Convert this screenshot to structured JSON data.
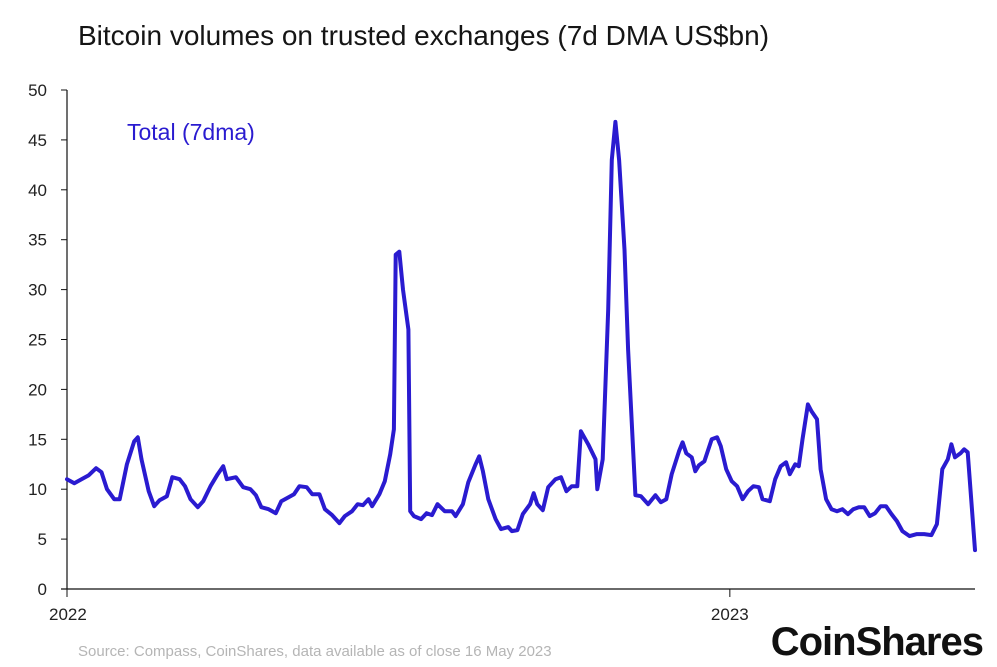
{
  "chart_data": {
    "type": "line",
    "title": "Bitcoin volumes on trusted exchanges (7d DMA US$bn)",
    "annotation": "Total (7dma)",
    "ylim": [
      0,
      50
    ],
    "y_ticks": [
      "0",
      "5",
      "10",
      "15",
      "20",
      "25",
      "30",
      "35",
      "40",
      "45",
      "50"
    ],
    "x_ticks": [
      "2022",
      "2023"
    ],
    "x_range": [
      "2022-01-01",
      "2023-05-16"
    ],
    "grid": false,
    "series": [
      {
        "name": "Total (7dma)",
        "color": "#2a1bd0",
        "points": [
          [
            "2022-01-01",
            11.0
          ],
          [
            "2022-01-05",
            10.6
          ],
          [
            "2022-01-09",
            11.0
          ],
          [
            "2022-01-13",
            11.4
          ],
          [
            "2022-01-17",
            12.1
          ],
          [
            "2022-01-20",
            11.7
          ],
          [
            "2022-01-23",
            10.0
          ],
          [
            "2022-01-27",
            9.0
          ],
          [
            "2022-01-30",
            9.0
          ],
          [
            "2022-02-03",
            12.5
          ],
          [
            "2022-02-07",
            14.8
          ],
          [
            "2022-02-09",
            15.2
          ],
          [
            "2022-02-11",
            13.0
          ],
          [
            "2022-02-15",
            9.8
          ],
          [
            "2022-02-18",
            8.3
          ],
          [
            "2022-02-21",
            8.9
          ],
          [
            "2022-02-25",
            9.3
          ],
          [
            "2022-02-28",
            11.2
          ],
          [
            "2022-03-04",
            11.0
          ],
          [
            "2022-03-07",
            10.3
          ],
          [
            "2022-03-10",
            9.0
          ],
          [
            "2022-03-14",
            8.2
          ],
          [
            "2022-03-17",
            8.8
          ],
          [
            "2022-03-21",
            10.3
          ],
          [
            "2022-03-25",
            11.5
          ],
          [
            "2022-03-28",
            12.3
          ],
          [
            "2022-03-30",
            11.0
          ],
          [
            "2022-04-04",
            11.2
          ],
          [
            "2022-04-08",
            10.2
          ],
          [
            "2022-04-12",
            10.0
          ],
          [
            "2022-04-15",
            9.4
          ],
          [
            "2022-04-18",
            8.2
          ],
          [
            "2022-04-22",
            8.0
          ],
          [
            "2022-04-26",
            7.6
          ],
          [
            "2022-04-29",
            8.8
          ],
          [
            "2022-05-03",
            9.2
          ],
          [
            "2022-05-06",
            9.5
          ],
          [
            "2022-05-09",
            10.3
          ],
          [
            "2022-05-13",
            10.2
          ],
          [
            "2022-05-16",
            9.5
          ],
          [
            "2022-05-20",
            9.5
          ],
          [
            "2022-05-23",
            8.0
          ],
          [
            "2022-05-27",
            7.4
          ],
          [
            "2022-05-31",
            6.6
          ],
          [
            "2022-06-03",
            7.3
          ],
          [
            "2022-06-07",
            7.8
          ],
          [
            "2022-06-10",
            8.5
          ],
          [
            "2022-06-13",
            8.4
          ],
          [
            "2022-06-16",
            9.0
          ],
          [
            "2022-06-18",
            8.3
          ],
          [
            "2022-06-22",
            9.5
          ],
          [
            "2022-06-25",
            10.8
          ],
          [
            "2022-06-28",
            13.5
          ],
          [
            "2022-06-30",
            16.0
          ],
          [
            "2022-07-01",
            33.5
          ],
          [
            "2022-07-03",
            33.8
          ],
          [
            "2022-07-05",
            30.0
          ],
          [
            "2022-07-08",
            26.0
          ],
          [
            "2022-07-09",
            7.8
          ],
          [
            "2022-07-11",
            7.3
          ],
          [
            "2022-07-15",
            7.0
          ],
          [
            "2022-07-18",
            7.6
          ],
          [
            "2022-07-21",
            7.4
          ],
          [
            "2022-07-24",
            8.5
          ],
          [
            "2022-07-28",
            7.8
          ],
          [
            "2022-08-01",
            7.8
          ],
          [
            "2022-08-03",
            7.3
          ],
          [
            "2022-08-07",
            8.5
          ],
          [
            "2022-08-10",
            10.7
          ],
          [
            "2022-08-14",
            12.5
          ],
          [
            "2022-08-16",
            13.3
          ],
          [
            "2022-08-18",
            11.8
          ],
          [
            "2022-08-21",
            9.0
          ],
          [
            "2022-08-25",
            7.0
          ],
          [
            "2022-08-28",
            6.0
          ],
          [
            "2022-09-01",
            6.2
          ],
          [
            "2022-09-03",
            5.8
          ],
          [
            "2022-09-06",
            5.9
          ],
          [
            "2022-09-09",
            7.5
          ],
          [
            "2022-09-13",
            8.5
          ],
          [
            "2022-09-15",
            9.6
          ],
          [
            "2022-09-17",
            8.5
          ],
          [
            "2022-09-20",
            7.9
          ],
          [
            "2022-09-23",
            10.2
          ],
          [
            "2022-09-27",
            11.0
          ],
          [
            "2022-09-30",
            11.2
          ],
          [
            "2022-10-03",
            9.8
          ],
          [
            "2022-10-06",
            10.3
          ],
          [
            "2022-10-09",
            10.3
          ],
          [
            "2022-10-11",
            15.8
          ],
          [
            "2022-10-15",
            14.5
          ],
          [
            "2022-10-19",
            13.0
          ],
          [
            "2022-10-20",
            10.0
          ],
          [
            "2022-10-23",
            13.0
          ],
          [
            "2022-10-26",
            28.0
          ],
          [
            "2022-10-28",
            43.0
          ],
          [
            "2022-10-30",
            46.8
          ],
          [
            "2022-11-01",
            43.0
          ],
          [
            "2022-11-04",
            34.0
          ],
          [
            "2022-11-06",
            24.0
          ],
          [
            "2022-11-09",
            13.0
          ],
          [
            "2022-11-10",
            9.4
          ],
          [
            "2022-11-13",
            9.3
          ],
          [
            "2022-11-17",
            8.5
          ],
          [
            "2022-11-21",
            9.4
          ],
          [
            "2022-11-24",
            8.7
          ],
          [
            "2022-11-27",
            9.0
          ],
          [
            "2022-11-30",
            11.5
          ],
          [
            "2022-12-04",
            13.8
          ],
          [
            "2022-12-06",
            14.7
          ],
          [
            "2022-12-08",
            13.6
          ],
          [
            "2022-12-11",
            13.2
          ],
          [
            "2022-12-13",
            11.8
          ],
          [
            "2022-12-15",
            12.4
          ],
          [
            "2022-12-18",
            12.8
          ],
          [
            "2022-12-22",
            15.0
          ],
          [
            "2022-12-25",
            15.2
          ],
          [
            "2022-12-27",
            14.3
          ],
          [
            "2022-12-30",
            12.0
          ],
          [
            "2023-01-02",
            10.8
          ],
          [
            "2023-01-05",
            10.3
          ],
          [
            "2023-01-08",
            9.0
          ],
          [
            "2023-01-11",
            9.8
          ],
          [
            "2023-01-14",
            10.3
          ],
          [
            "2023-01-17",
            10.2
          ],
          [
            "2023-01-19",
            9.0
          ],
          [
            "2023-01-23",
            8.8
          ],
          [
            "2023-01-26",
            11.0
          ],
          [
            "2023-01-29",
            12.3
          ],
          [
            "2023-02-01",
            12.7
          ],
          [
            "2023-02-03",
            11.5
          ],
          [
            "2023-02-06",
            12.5
          ],
          [
            "2023-02-08",
            12.3
          ],
          [
            "2023-02-10",
            15.0
          ],
          [
            "2023-02-13",
            18.5
          ],
          [
            "2023-02-15",
            17.8
          ],
          [
            "2023-02-18",
            17.0
          ],
          [
            "2023-02-20",
            12.0
          ],
          [
            "2023-02-23",
            9.0
          ],
          [
            "2023-02-26",
            8.0
          ],
          [
            "2023-03-01",
            7.8
          ],
          [
            "2023-03-04",
            8.0
          ],
          [
            "2023-03-07",
            7.5
          ],
          [
            "2023-03-10",
            8.0
          ],
          [
            "2023-03-13",
            8.2
          ],
          [
            "2023-03-16",
            8.2
          ],
          [
            "2023-03-19",
            7.3
          ],
          [
            "2023-03-22",
            7.6
          ],
          [
            "2023-03-25",
            8.3
          ],
          [
            "2023-03-28",
            8.3
          ],
          [
            "2023-03-31",
            7.5
          ],
          [
            "2023-04-03",
            6.8
          ],
          [
            "2023-04-06",
            5.8
          ],
          [
            "2023-04-10",
            5.3
          ],
          [
            "2023-04-14",
            5.5
          ],
          [
            "2023-04-18",
            5.5
          ],
          [
            "2023-04-22",
            5.4
          ],
          [
            "2023-04-25",
            6.5
          ],
          [
            "2023-04-28",
            12.0
          ],
          [
            "2023-05-01",
            13.0
          ],
          [
            "2023-05-03",
            14.5
          ],
          [
            "2023-05-05",
            13.2
          ],
          [
            "2023-05-08",
            13.6
          ],
          [
            "2023-05-10",
            14.0
          ],
          [
            "2023-05-12",
            13.7
          ],
          [
            "2023-05-16",
            3.9
          ]
        ]
      }
    ]
  },
  "source_text": "Source: Compass, CoinShares, data available as of close 16 May 2023",
  "brand": "CoinShares"
}
